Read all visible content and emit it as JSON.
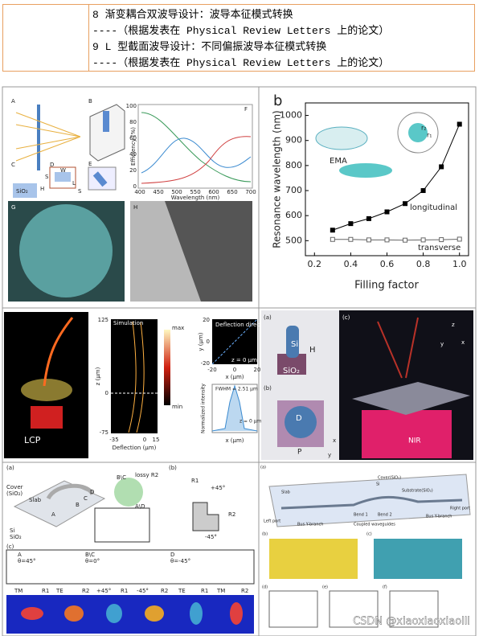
{
  "list": {
    "items": [
      "8 渐变耦合双波导设计：波导本征模式转换",
      "----（根据发表在 Physical Review Letters 上的论文）",
      "9 L 型截面波导设计：不同偏振波导本征模式转换",
      "----（根据发表在 Physical Review Letters 上的论文）"
    ]
  },
  "fig1": {
    "labels": [
      "A",
      "B",
      "C",
      "D",
      "E",
      "F",
      "G",
      "H",
      "SiO₂",
      "H",
      "S",
      "W",
      "L",
      "S",
      "Efficiency (%)",
      "Wavelength (nm)",
      "400",
      "450",
      "500",
      "550",
      "600",
      "650",
      "700",
      "0",
      "20",
      "40",
      "60",
      "80",
      "100"
    ]
  },
  "chart_data": {
    "type": "line",
    "panel_label": "b",
    "ylabel": "Resonance wavelength (nm)",
    "xlabel": "Filling factor",
    "annotations": [
      "EMA",
      "r₂",
      "r₁"
    ],
    "xlim": [
      0.15,
      1.05
    ],
    "ylim": [
      440,
      1050
    ],
    "xticks": [
      0.2,
      0.4,
      0.6,
      0.8,
      {
        "value": 1,
        "label": "1.0"
      }
    ],
    "yticks": [
      500,
      600,
      700,
      800,
      900,
      1000
    ],
    "x": [
      0.3,
      0.4,
      0.5,
      0.6,
      0.7,
      0.8,
      0.9,
      1.0
    ],
    "series": [
      {
        "name": "longitudinal",
        "color": "#000000",
        "values": [
          542,
          568,
          588,
          615,
          648,
          700,
          795,
          965
        ]
      },
      {
        "name": "transverse",
        "color": "#666666",
        "values": [
          505,
          505,
          503,
          503,
          502,
          503,
          504,
          506
        ]
      }
    ]
  },
  "fig3": {
    "labels": [
      "LCP",
      "Simulation",
      "max",
      "min",
      "z (μm)",
      "125",
      "0",
      "-75",
      "-35",
      "0",
      "15",
      "Deflection (μm)",
      "Deflection direction",
      "y (μm)",
      "20",
      "0",
      "-20",
      "-20",
      "0",
      "20",
      "x (μm)",
      "z = 0 μm",
      "FWHM = 2.51 μm",
      "Normalized intensity",
      "z = 0 μm",
      "x (μm)"
    ]
  },
  "fig4": {
    "labels": [
      "(a)",
      "Si",
      "H",
      "SiO₂",
      "(b)",
      "D",
      "P",
      "x",
      "y",
      "(c)",
      "z",
      "y",
      "x",
      "NIR"
    ]
  },
  "fig5": {
    "labels": [
      "(a)",
      "Cover",
      "(SiO₂)",
      "Slab",
      "Si",
      "SiO₂",
      "A",
      "B",
      "C",
      "D",
      "B\\C",
      "lossy R2",
      "A\\D",
      "(b)",
      "R1",
      "R2",
      "+45°",
      "-45°",
      "(c)",
      "A",
      "θ=45°",
      "B\\C",
      "θ=0°",
      "D",
      "θ=-45°",
      "TM",
      "R1",
      "TE",
      "R2",
      "+45°",
      "R1",
      "-45°",
      "R2",
      "TE",
      "R1",
      "TM",
      "R2"
    ]
  },
  "fig6": {
    "labels": [
      "(a)",
      "Cover(SiO₂)",
      "Si",
      "Slab",
      "Substrate(SiO₂)",
      "Left port",
      "Right port",
      "Bus Y-branch",
      "Bend 1",
      "Bend 2",
      "Bus Y-branch",
      "Coupled waveguides",
      "(b)",
      "(c)",
      "(d)",
      "(e)",
      "(f)"
    ]
  },
  "watermark": "CSDN @xiaoxiaoxiaolll"
}
